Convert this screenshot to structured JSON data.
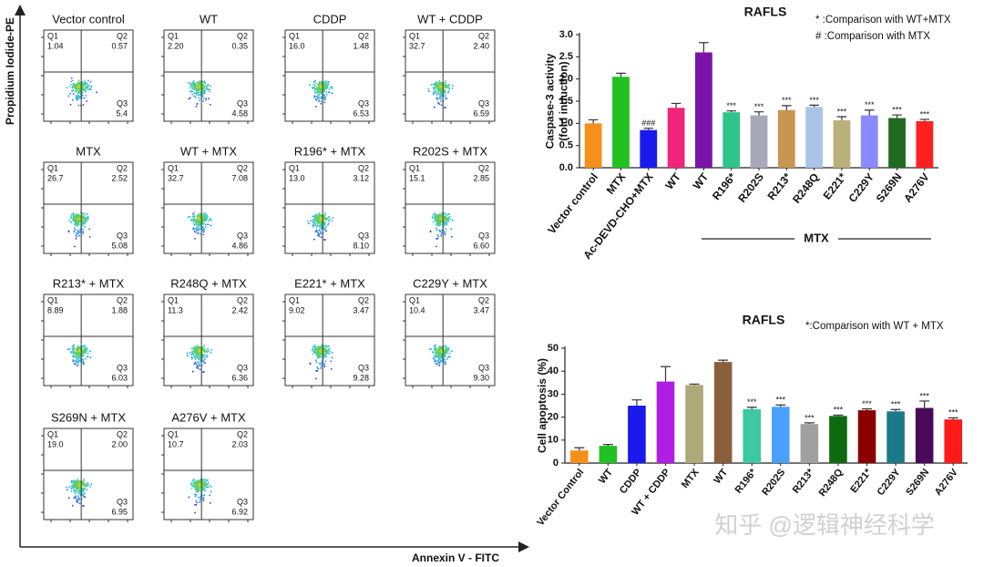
{
  "flow_cytometry": {
    "y_label": "Propidium Iodide-PE",
    "x_label": "Annexin V - FITC",
    "quadrant_labels": [
      "Q1",
      "Q2",
      "Q3"
    ],
    "panels": [
      {
        "title": "Vector control",
        "q1": "1.04",
        "q2": "0.57",
        "q3": "5.4"
      },
      {
        "title": "WT",
        "q1": "2.20",
        "q2": "0.35",
        "q3": "4.58"
      },
      {
        "title": "CDDP",
        "q1": "16.0",
        "q2": "1.48",
        "q3": "6.53"
      },
      {
        "title": "WT + CDDP",
        "q1": "32.7",
        "q2": "2.40",
        "q3": "6.59"
      },
      {
        "title": "MTX",
        "q1": "26.7",
        "q2": "2.52",
        "q3": "5.08"
      },
      {
        "title": "WT + MTX",
        "q1": "32.7",
        "q2": "7.08",
        "q3": "4.86"
      },
      {
        "title": "R196* + MTX",
        "q1": "13.0",
        "q2": "3.12",
        "q3": "8.10"
      },
      {
        "title": "R202S + MTX",
        "q1": "15.1",
        "q2": "2.85",
        "q3": "6.60"
      },
      {
        "title": "R213* + MTX",
        "q1": "8.89",
        "q2": "1.88",
        "q3": "6.03"
      },
      {
        "title": "R248Q + MTX",
        "q1": "11.3",
        "q2": "2.42",
        "q3": "6.36"
      },
      {
        "title": "E221* + MTX",
        "q1": "9.02",
        "q2": "3.47",
        "q3": "9.28"
      },
      {
        "title": "C229Y + MTX",
        "q1": "10.4",
        "q2": "3.47",
        "q3": "9.30"
      },
      {
        "title": "S269N + MTX",
        "q1": "19.0",
        "q2": "2.00",
        "q3": "6.95"
      },
      {
        "title": "A276V + MTX",
        "q1": "10.7",
        "q2": "2.03",
        "q3": "6.92"
      }
    ]
  },
  "chart_data": [
    {
      "type": "bar",
      "title": "RAFLS",
      "notes": [
        "* :Comparison with WT+MTX",
        "# :Comparison with MTX"
      ],
      "y_label": [
        "Caspase-3 activity",
        "(fold induction)"
      ],
      "group_label": "MTX",
      "categories": [
        "Vector control",
        "MTX",
        "Ac-DEVD-CHO+MTX",
        "WT",
        "WT",
        "R196*",
        "R202S",
        "R213*",
        "R248Q",
        "E221*",
        "C229Y",
        "S269N",
        "A276V"
      ],
      "values": [
        1.0,
        2.05,
        0.85,
        1.35,
        2.6,
        1.25,
        1.18,
        1.3,
        1.37,
        1.07,
        1.18,
        1.12,
        1.05
      ],
      "errors": [
        0.08,
        0.08,
        0.04,
        0.1,
        0.22,
        0.03,
        0.08,
        0.1,
        0.04,
        0.08,
        0.12,
        0.07,
        0.04
      ],
      "bar_labels": [
        null,
        null,
        "###",
        null,
        null,
        "***",
        "***",
        "***",
        "***",
        "***",
        "***",
        "***",
        "***"
      ],
      "colors": [
        "#f5901c",
        "#22c022",
        "#1a1aee",
        "#f0247a",
        "#7a14a8",
        "#2ec48a",
        "#a8a8b8",
        "#c89650",
        "#a9c4e6",
        "#bcb07a",
        "#8a8aff",
        "#1f6b1f",
        "#ff2020"
      ],
      "ylim": [
        0,
        3.0
      ],
      "yticks": [
        {
          "value": 0,
          "label": "0.0"
        },
        {
          "value": 0.5,
          "label": "0.5"
        },
        {
          "value": 1,
          "label": "1.0"
        },
        {
          "value": 1.5,
          "label": "1.5"
        },
        {
          "value": 2,
          "label": "2.0"
        },
        {
          "value": 2.5,
          "label": "2.5"
        },
        {
          "value": 3,
          "label": "3.0"
        }
      ]
    },
    {
      "type": "bar",
      "title": "RAFLS",
      "notes": [
        "*:Comparison with WT + MTX"
      ],
      "y_label": [
        "Cell apoptosis (%)"
      ],
      "categories": [
        "Vector Control",
        "WT",
        "CDDP",
        "WT + CDDP",
        "MTX",
        "WT",
        "R196*",
        "R202S",
        "R213*",
        "R248Q",
        "E221*",
        "C229Y",
        "S269N",
        "A276V"
      ],
      "values": [
        5.5,
        7.5,
        25,
        35.5,
        34,
        44,
        23.5,
        24.5,
        17,
        20.5,
        23,
        22.5,
        24,
        19
      ],
      "errors": [
        1.2,
        0.6,
        2.5,
        6.5,
        0.4,
        0.8,
        0.8,
        0.8,
        0.5,
        0.4,
        0.6,
        0.8,
        3,
        0.7
      ],
      "bar_labels": [
        null,
        null,
        null,
        null,
        null,
        null,
        "***",
        "***",
        "***",
        "***",
        "***",
        "***",
        "***",
        "***"
      ],
      "colors": [
        "#f5901c",
        "#22c022",
        "#1a1aee",
        "#b01ee6",
        "#b0a878",
        "#8b5e3c",
        "#3cc8a0",
        "#4aa0ff",
        "#a0a0a0",
        "#0e6a0e",
        "#8b0000",
        "#1a7a8a",
        "#4a0a5a",
        "#ff1a1a"
      ],
      "ylim": [
        0,
        50
      ],
      "yticks": [
        0,
        10,
        20,
        30,
        40,
        50
      ]
    }
  ],
  "watermark": "知乎 @逻辑神经科学"
}
